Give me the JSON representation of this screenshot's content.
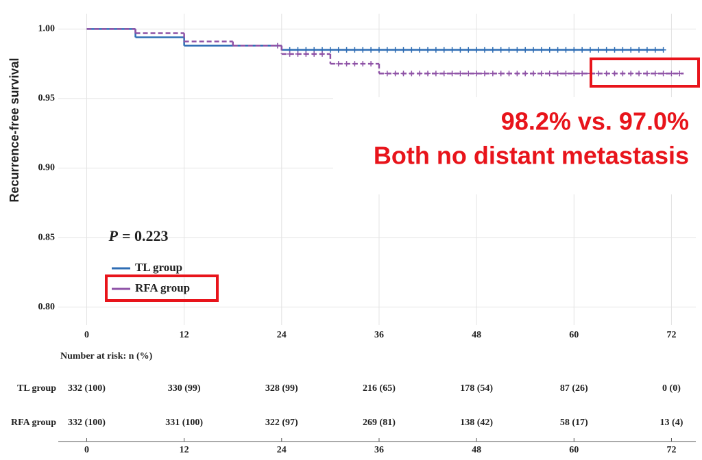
{
  "chart_data": {
    "type": "km",
    "y_label": "Recurrence-free survival",
    "xlim": [
      -3.5,
      75
    ],
    "ylim": [
      0.787,
      1.011
    ],
    "xticks": [
      0,
      12,
      24,
      36,
      48,
      60,
      72
    ],
    "yticks": [
      {
        "value": 1.0,
        "label": "1.00"
      },
      {
        "value": 0.95,
        "label": "0.95"
      },
      {
        "value": 0.9,
        "label": "0.90"
      },
      {
        "value": 0.85,
        "label": "0.85"
      },
      {
        "value": 0.8,
        "label": "0.80"
      }
    ],
    "grid": true,
    "p_symbol": "P",
    "p_text": "= 0.223",
    "annotations": [
      "98.2% vs. 97.0%",
      "Both no distant metastasis"
    ],
    "series": [
      {
        "name": "TL group",
        "color": "#2e6db4",
        "dash": false,
        "x": [
          0,
          6,
          12,
          24,
          71
        ],
        "values": [
          1.0,
          0.994,
          0.988,
          0.985,
          0.985
        ],
        "censored": [
          25,
          26,
          27,
          28,
          29,
          30,
          31,
          32,
          33,
          34,
          35,
          36,
          37,
          38,
          39,
          40,
          41,
          42,
          43,
          44,
          45,
          46,
          47,
          48,
          49,
          50,
          51,
          52,
          53,
          54,
          55,
          56,
          57,
          58,
          59,
          60,
          61,
          62,
          63,
          64,
          65,
          66,
          67,
          68,
          69,
          70,
          71
        ]
      },
      {
        "name": "RFA group",
        "color": "#8e52a6",
        "dash": true,
        "x": [
          0,
          6,
          12,
          18,
          24,
          30,
          36,
          73.5
        ],
        "values": [
          1.0,
          0.997,
          0.991,
          0.988,
          0.982,
          0.975,
          0.968,
          0.968
        ],
        "censored": [
          23.5,
          25,
          26,
          27,
          28,
          29,
          31,
          32,
          33,
          34,
          35,
          37,
          38,
          39,
          40,
          41,
          42,
          43,
          44,
          45,
          46,
          47,
          48,
          49,
          50,
          51,
          52,
          53,
          54,
          55,
          56,
          57,
          58,
          59,
          60,
          61,
          62,
          63,
          64,
          65,
          66,
          67,
          68,
          69,
          70,
          71,
          72,
          73
        ]
      }
    ],
    "risk_table": {
      "title": "Number at risk: n (%)",
      "rows": [
        {
          "name": "TL group",
          "values": [
            "332 (100)",
            "330 (99)",
            "328 (99)",
            "216 (65)",
            "178 (54)",
            "87 (26)",
            "0 (0)"
          ]
        },
        {
          "name": "RFA group",
          "values": [
            "332 (100)",
            "331 (100)",
            "322 (97)",
            "269 (81)",
            "138 (42)",
            "58 (17)",
            "13 (4)"
          ]
        }
      ]
    }
  }
}
